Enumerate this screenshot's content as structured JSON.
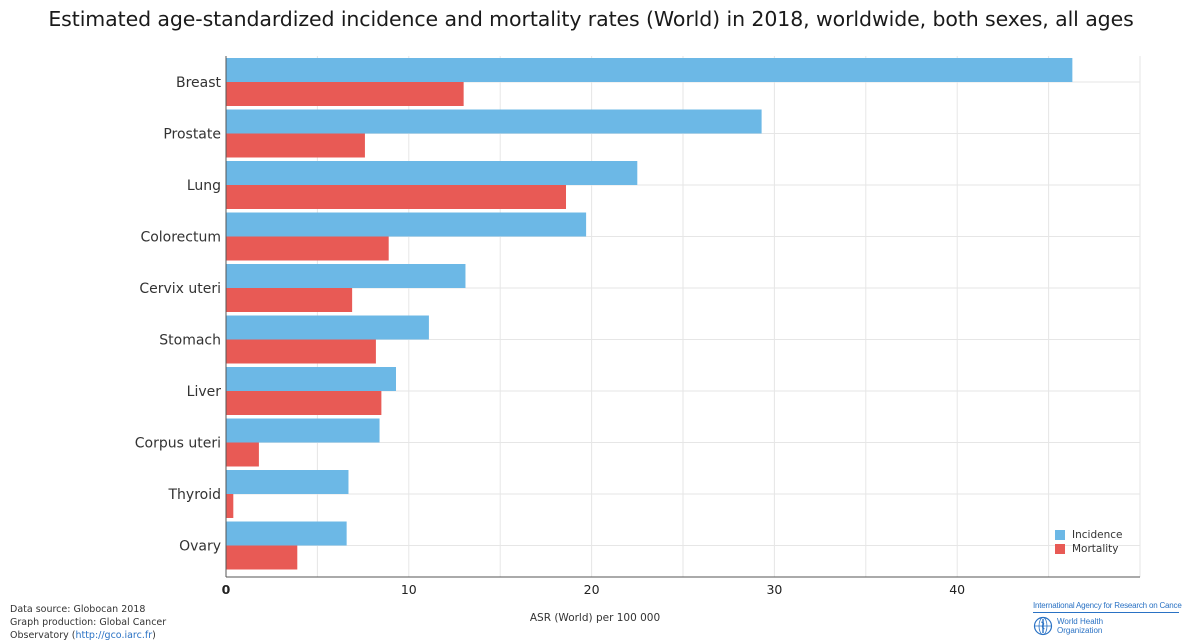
{
  "chart_data": {
    "type": "bar",
    "orientation": "horizontal",
    "title": "Estimated age-standardized incidence and mortality rates (World) in 2018, worldwide, both sexes, all ages",
    "xlabel": "ASR (World) per 100 000",
    "ylabel": "",
    "xlim": [
      0,
      50
    ],
    "xticks": [
      0,
      10,
      20,
      30,
      40
    ],
    "grid": true,
    "legend_position": "bottom-right",
    "categories": [
      "Breast",
      "Prostate",
      "Lung",
      "Colorectum",
      "Cervix uteri",
      "Stomach",
      "Liver",
      "Corpus uteri",
      "Thyroid",
      "Ovary"
    ],
    "series": [
      {
        "name": "Incidence",
        "color": "#6cb8e6",
        "values": [
          46.3,
          29.3,
          22.5,
          19.7,
          13.1,
          11.1,
          9.3,
          8.4,
          6.7,
          6.6
        ]
      },
      {
        "name": "Mortality",
        "color": "#e85a55",
        "values": [
          13.0,
          7.6,
          18.6,
          8.9,
          6.9,
          8.2,
          8.5,
          1.8,
          0.4,
          3.9
        ]
      }
    ]
  },
  "footer": {
    "source_line1": "Data source: Globocan 2018",
    "source_line2": "Graph production: Global Cancer",
    "source_line3_prefix": "Observatory (",
    "source_link": "http://gco.iarc.fr",
    "source_line3_suffix": ")"
  },
  "logo": {
    "iarc": "International Agency for Research on Cancer",
    "who_line1": "World Health",
    "who_line2": "Organization"
  }
}
